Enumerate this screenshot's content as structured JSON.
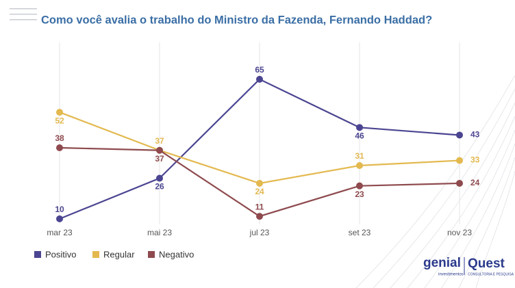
{
  "chart_data": {
    "type": "line",
    "title": "Como você avalia o trabalho do Ministro da Fazenda, Fernando Haddad?",
    "categories": [
      "mar 23",
      "mai 23",
      "jul 23",
      "set 23",
      "nov 23"
    ],
    "series": [
      {
        "name": "Positivo",
        "color": "#4b4591",
        "values": [
          10,
          26,
          65,
          46,
          43
        ]
      },
      {
        "name": "Regular",
        "color": "#e3b94f",
        "values": [
          52,
          37,
          24,
          31,
          33
        ]
      },
      {
        "name": "Negativo",
        "color": "#8e4a4e",
        "values": [
          38,
          37,
          11,
          23,
          24
        ]
      }
    ],
    "grid": true,
    "legend": "bottom"
  },
  "logo": {
    "brand": "genial",
    "sub": "investimentos",
    "partner": "Quest",
    "partner_sub": "CONSULTORIA E PESQUISA"
  }
}
